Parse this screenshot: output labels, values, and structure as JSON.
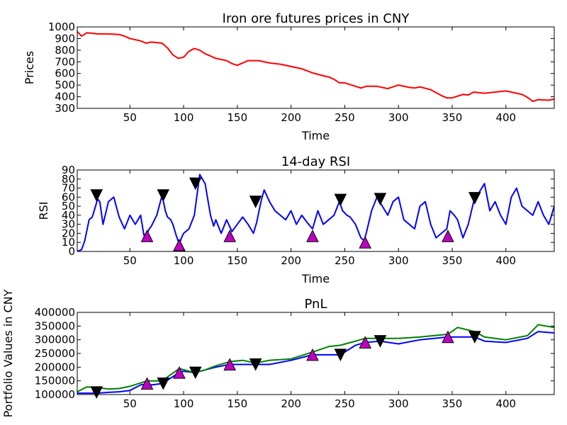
{
  "chart_data": [
    {
      "type": "line",
      "title": "Iron ore futures prices in CNY",
      "xlabel": "Time",
      "ylabel": "Prices",
      "xlim": [
        1,
        445
      ],
      "ylim": [
        300,
        1000
      ],
      "xticks": [
        50,
        100,
        150,
        200,
        250,
        300,
        350,
        400
      ],
      "yticks": [
        300,
        400,
        500,
        600,
        700,
        800,
        900,
        1000
      ],
      "series": [
        {
          "color": "#ff0000",
          "x": [
            1,
            5,
            10,
            20,
            30,
            40,
            45,
            50,
            60,
            65,
            70,
            80,
            85,
            90,
            95,
            100,
            105,
            110,
            115,
            120,
            125,
            130,
            140,
            145,
            150,
            155,
            160,
            170,
            180,
            190,
            200,
            210,
            220,
            230,
            235,
            240,
            245,
            250,
            260,
            265,
            270,
            280,
            290,
            300,
            310,
            315,
            320,
            330,
            340,
            345,
            350,
            360,
            365,
            370,
            380,
            390,
            400,
            410,
            415,
            420,
            425,
            430,
            440,
            445
          ],
          "y": [
            960,
            920,
            950,
            940,
            940,
            935,
            920,
            900,
            880,
            860,
            870,
            860,
            820,
            760,
            730,
            740,
            790,
            815,
            800,
            770,
            750,
            730,
            710,
            685,
            670,
            690,
            710,
            710,
            690,
            680,
            660,
            640,
            605,
            580,
            570,
            550,
            520,
            520,
            490,
            475,
            490,
            490,
            470,
            500,
            480,
            475,
            485,
            460,
            410,
            390,
            390,
            420,
            415,
            440,
            430,
            440,
            450,
            430,
            420,
            395,
            360,
            375,
            370,
            380
          ]
        }
      ]
    },
    {
      "type": "line",
      "title": "14-day RSI",
      "xlabel": "Time",
      "ylabel": "RSI",
      "xlim": [
        1,
        445
      ],
      "ylim": [
        0,
        90
      ],
      "xticks": [
        50,
        100,
        150,
        200,
        250,
        300,
        350,
        400
      ],
      "yticks": [
        0,
        10,
        20,
        30,
        40,
        50,
        60,
        70,
        80,
        90
      ],
      "series": [
        {
          "color": "#0000ff",
          "x": [
            1,
            5,
            8,
            12,
            15,
            18,
            20,
            22,
            25,
            30,
            35,
            40,
            45,
            50,
            55,
            60,
            63,
            66,
            68,
            70,
            75,
            80,
            83,
            85,
            88,
            90,
            93,
            96,
            98,
            100,
            105,
            110,
            115,
            120,
            125,
            128,
            130,
            135,
            140,
            145,
            150,
            155,
            160,
            165,
            168,
            172,
            175,
            180,
            185,
            190,
            195,
            200,
            205,
            210,
            215,
            220,
            225,
            230,
            235,
            240,
            245,
            248,
            252,
            255,
            260,
            265,
            268,
            270,
            275,
            280,
            285,
            290,
            295,
            300,
            305,
            310,
            315,
            320,
            325,
            330,
            335,
            340,
            345,
            348,
            352,
            355,
            360,
            365,
            370,
            375,
            380,
            385,
            390,
            395,
            400,
            405,
            410,
            415,
            420,
            425,
            430,
            435,
            440,
            445
          ],
          "y": [
            0,
            2,
            12,
            35,
            38,
            50,
            58,
            55,
            30,
            55,
            60,
            38,
            25,
            40,
            30,
            40,
            18,
            20,
            25,
            28,
            40,
            62,
            45,
            38,
            35,
            30,
            18,
            8,
            15,
            20,
            25,
            40,
            85,
            75,
            40,
            28,
            35,
            20,
            35,
            22,
            30,
            38,
            30,
            20,
            32,
            55,
            68,
            55,
            45,
            40,
            35,
            45,
            30,
            40,
            32,
            25,
            45,
            30,
            35,
            40,
            55,
            45,
            40,
            38,
            30,
            15,
            12,
            20,
            45,
            60,
            50,
            40,
            55,
            60,
            35,
            30,
            25,
            50,
            55,
            30,
            15,
            20,
            25,
            45,
            40,
            35,
            15,
            30,
            55,
            65,
            75,
            45,
            55,
            40,
            30,
            60,
            70,
            50,
            45,
            40,
            55,
            40,
            30,
            50
          ]
        }
      ],
      "markers": {
        "sell": {
          "x": [
            19,
            81,
            111,
            167,
            246,
            283,
            371
          ],
          "y": [
            62,
            62,
            75,
            55,
            57,
            58,
            59
          ],
          "color": "#000000"
        },
        "buy": {
          "x": [
            66,
            96,
            143,
            220,
            269,
            346
          ],
          "y": [
            17,
            7,
            17,
            17,
            10,
            17
          ],
          "color": "#bf00bf"
        }
      }
    },
    {
      "type": "line",
      "title": "PnL",
      "xlabel": "",
      "ylabel": "Portfolio Values in CNY",
      "xlim": [
        1,
        445
      ],
      "ylim": [
        100000,
        400000
      ],
      "xticks": [
        50,
        100,
        150,
        200,
        250,
        300,
        350,
        400
      ],
      "yticks": [
        100000,
        150000,
        200000,
        250000,
        300000,
        350000,
        400000
      ],
      "series": [
        {
          "color": "#0000ff",
          "x": [
            1,
            19,
            30,
            40,
            50,
            60,
            66,
            70,
            80,
            90,
            96,
            100,
            111,
            120,
            130,
            143,
            150,
            167,
            180,
            200,
            220,
            230,
            246,
            260,
            269,
            283,
            300,
            320,
            346,
            360,
            371,
            380,
            400,
            420,
            430,
            445
          ],
          "y": [
            105000,
            105000,
            108000,
            110000,
            115000,
            135000,
            140000,
            135000,
            140000,
            165000,
            180000,
            185000,
            180000,
            190000,
            200000,
            210000,
            210000,
            210000,
            210000,
            225000,
            245000,
            245000,
            245000,
            280000,
            290000,
            295000,
            285000,
            300000,
            310000,
            310000,
            310000,
            295000,
            290000,
            305000,
            330000,
            325000
          ]
        },
        {
          "color": "#008000",
          "x": [
            1,
            10,
            20,
            30,
            40,
            50,
            66,
            80,
            96,
            110,
            120,
            130,
            143,
            155,
            167,
            180,
            200,
            220,
            235,
            246,
            260,
            269,
            283,
            300,
            320,
            346,
            355,
            371,
            380,
            400,
            420,
            430,
            445
          ],
          "y": [
            110000,
            128000,
            125000,
            120000,
            122000,
            130000,
            150000,
            150000,
            195000,
            180000,
            190000,
            205000,
            220000,
            225000,
            215000,
            225000,
            230000,
            255000,
            275000,
            280000,
            295000,
            305000,
            305000,
            305000,
            310000,
            320000,
            345000,
            330000,
            310000,
            300000,
            315000,
            355000,
            345000
          ]
        }
      ],
      "markers": {
        "sell": {
          "x": [
            19,
            81,
            111,
            167,
            246,
            283,
            371
          ],
          "y": [
            108000,
            140000,
            180000,
            210000,
            245000,
            295000,
            310000
          ],
          "color": "#000000"
        },
        "buy": {
          "x": [
            66,
            96,
            143,
            220,
            269,
            346
          ],
          "y": [
            140000,
            180000,
            210000,
            245000,
            290000,
            310000
          ],
          "color": "#bf00bf"
        }
      }
    }
  ]
}
